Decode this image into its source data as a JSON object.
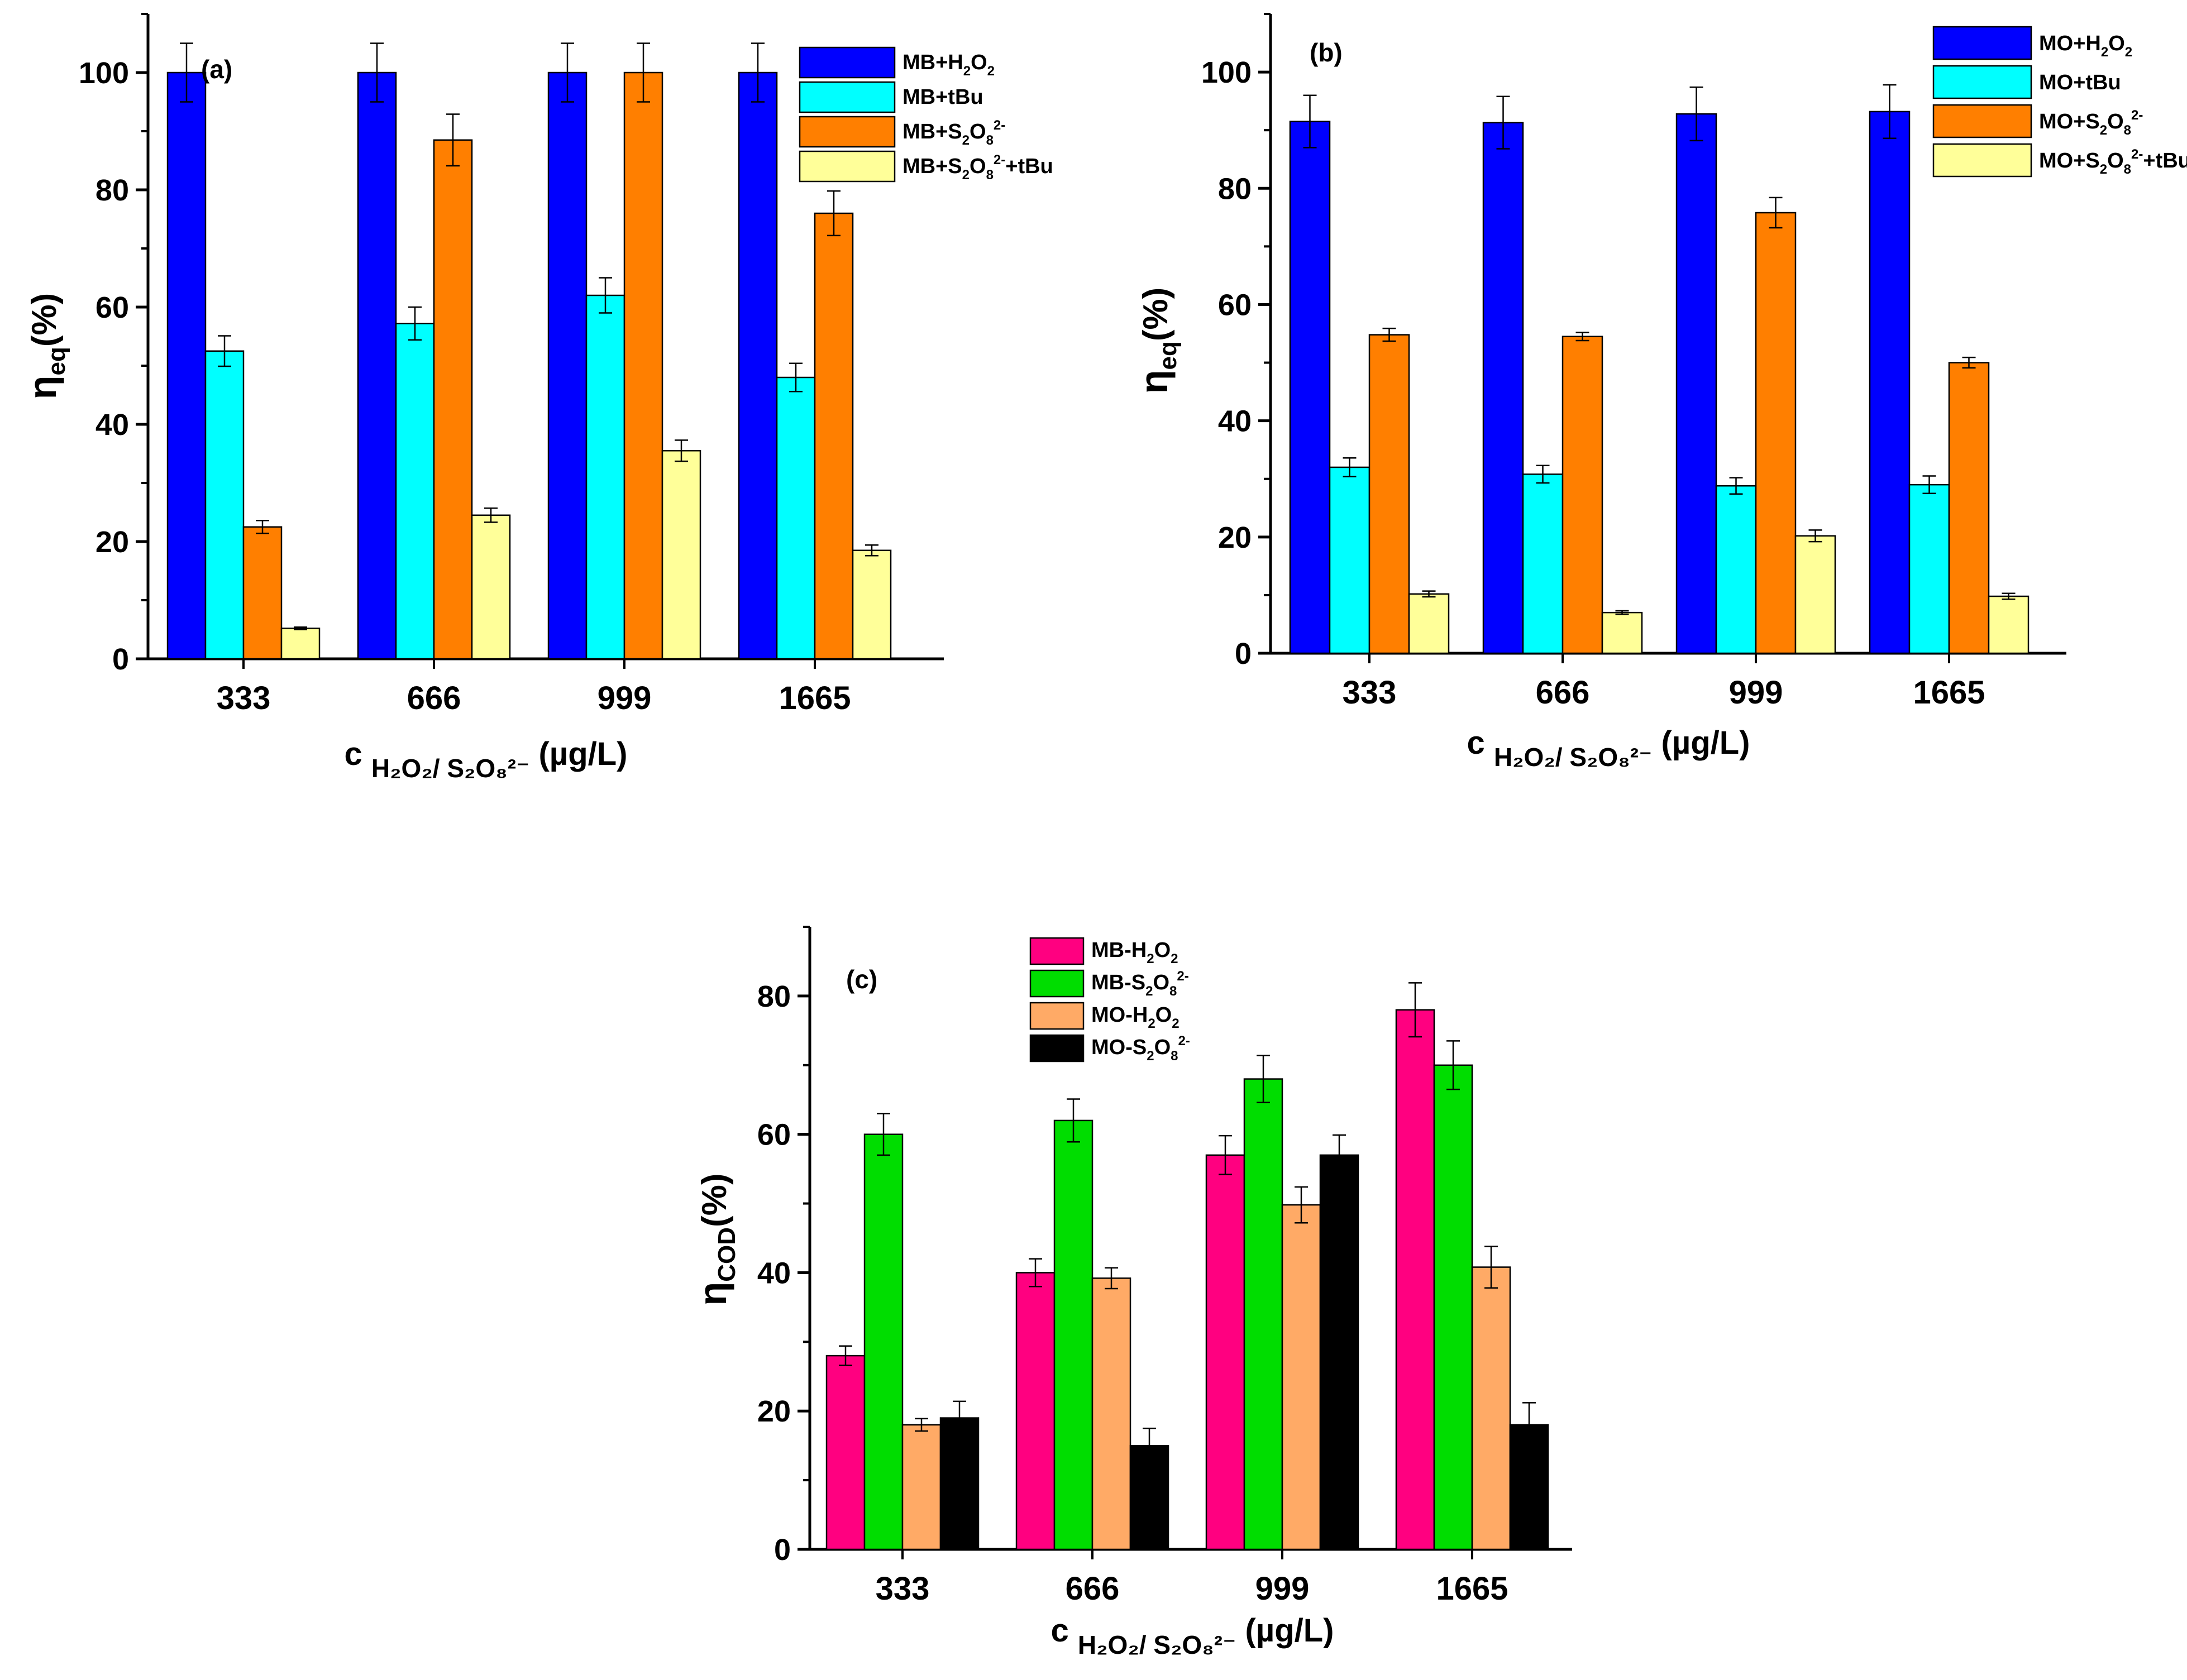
{
  "chart_data": [
    {
      "type": "bar",
      "panel_label": "(a)",
      "categories": [
        "333",
        "666",
        "999",
        "1665"
      ],
      "ylim": [
        0,
        110
      ],
      "y_ticks": [
        "0",
        "20",
        "40",
        "60",
        "80",
        "100"
      ],
      "ylabel": {
        "main": "η",
        "sub": "eq",
        "tail": "(%)"
      },
      "xlabel": {
        "lead": "c",
        "sub": "H₂O₂/ S₂O₈²⁻",
        "tail": "(µg/L)"
      },
      "legend_position": "top-right",
      "series": [
        {
          "name": "MB+H₂O₂",
          "label_main": "MB+H",
          "label_rest": [
            {
              "t": "2",
              "s": "sub"
            },
            {
              "t": "O",
              "s": "n"
            },
            {
              "t": "2",
              "s": "sub"
            }
          ],
          "color": "#0000FF",
          "values": [
            100,
            100,
            100,
            100
          ],
          "errors": [
            5,
            5,
            5,
            5
          ]
        },
        {
          "name": "MB+tBu",
          "label_main": "MB+tBu",
          "label_rest": [],
          "color": "#00FFFF",
          "values": [
            52.5,
            57.2,
            62,
            48
          ],
          "errors": [
            2.6,
            2.8,
            3,
            2.4
          ]
        },
        {
          "name": "MB+S₂O₈²⁻",
          "label_main": "MB+S",
          "label_rest": [
            {
              "t": "2",
              "s": "sub"
            },
            {
              "t": "O",
              "s": "n"
            },
            {
              "t": "8",
              "s": "sub"
            },
            {
              "t": "2-",
              "s": "sup"
            }
          ],
          "color": "#FF7F00",
          "values": [
            22.5,
            88.5,
            100,
            76
          ],
          "errors": [
            1.1,
            4.4,
            5,
            3.8
          ]
        },
        {
          "name": "MB+S₂O₈²⁻+tBu",
          "label_main": "MB+S",
          "label_rest": [
            {
              "t": "2",
              "s": "sub"
            },
            {
              "t": "O",
              "s": "n"
            },
            {
              "t": "8",
              "s": "sub"
            },
            {
              "t": "2-",
              "s": "sup"
            },
            {
              "t": "+tBu",
              "s": "n"
            }
          ],
          "color": "#FFFF99",
          "values": [
            5.2,
            24.5,
            35.5,
            18.5
          ],
          "errors": [
            0.2,
            1.2,
            1.8,
            0.9
          ]
        }
      ]
    },
    {
      "type": "bar",
      "panel_label": "(b)",
      "categories": [
        "333",
        "666",
        "999",
        "1665"
      ],
      "ylim": [
        0,
        110
      ],
      "y_ticks": [
        "0",
        "20",
        "40",
        "60",
        "80",
        "100"
      ],
      "ylabel": {
        "main": "η",
        "sub": "eq",
        "tail": "(%)"
      },
      "xlabel": {
        "lead": "c",
        "sub": "H₂O₂/ S₂O₈²⁻",
        "tail": "(µg/L)"
      },
      "legend_position": "top-right",
      "series": [
        {
          "name": "MO+H₂O₂",
          "label_main": "MO+H",
          "label_rest": [
            {
              "t": "2",
              "s": "sub"
            },
            {
              "t": "O",
              "s": "n"
            },
            {
              "t": "2",
              "s": "sub"
            }
          ],
          "color": "#0000FF",
          "values": [
            91.5,
            91.3,
            92.8,
            93.2
          ],
          "errors": [
            4.5,
            4.5,
            4.6,
            4.6
          ]
        },
        {
          "name": "MO+tBu",
          "label_main": "MO+tBu",
          "label_rest": [],
          "color": "#00FFFF",
          "values": [
            32,
            30.8,
            28.8,
            29
          ],
          "errors": [
            1.6,
            1.5,
            1.4,
            1.5
          ]
        },
        {
          "name": "MO+S₂O₈²⁻",
          "label_main": "MO+S",
          "label_rest": [
            {
              "t": "2",
              "s": "sub"
            },
            {
              "t": "O",
              "s": "n"
            },
            {
              "t": "8",
              "s": "sub"
            },
            {
              "t": "2-",
              "s": "sup"
            }
          ],
          "color": "#FF7F00",
          "values": [
            54.8,
            54.5,
            75.8,
            50
          ],
          "errors": [
            1.1,
            0.7,
            2.6,
            0.9
          ]
        },
        {
          "name": "MO+S₂O₈²⁻+tBu",
          "label_main": "MO+S",
          "label_rest": [
            {
              "t": "2",
              "s": "sub"
            },
            {
              "t": "O",
              "s": "n"
            },
            {
              "t": "8",
              "s": "sub"
            },
            {
              "t": "2-",
              "s": "sup"
            },
            {
              "t": "+tBu",
              "s": "n"
            }
          ],
          "color": "#FFFF99",
          "values": [
            10.2,
            7,
            20.2,
            9.8
          ],
          "errors": [
            0.5,
            0.3,
            1,
            0.5
          ]
        }
      ]
    },
    {
      "type": "bar",
      "panel_label": "(c)",
      "categories": [
        "333",
        "666",
        "999",
        "1665"
      ],
      "ylim": [
        0,
        90
      ],
      "y_ticks": [
        "0",
        "20",
        "40",
        "60",
        "80"
      ],
      "ylabel": {
        "main": "η",
        "sub": "COD",
        "tail": "(%)"
      },
      "xlabel": {
        "lead": "c",
        "sub": "H₂O₂/ S₂O₈²⁻",
        "tail": "(µg/L)"
      },
      "legend_position": "top-left",
      "series": [
        {
          "name": "MB-H₂O₂",
          "label_main": "MB-H",
          "label_rest": [
            {
              "t": "2",
              "s": "sub"
            },
            {
              "t": "O",
              "s": "n"
            },
            {
              "t": "2",
              "s": "sub"
            }
          ],
          "color": "#FF0080",
          "values": [
            28,
            40,
            57,
            78
          ],
          "errors": [
            1.4,
            2,
            2.8,
            3.9
          ]
        },
        {
          "name": "MB-S₂O₈²⁻",
          "label_main": "MB-S",
          "label_rest": [
            {
              "t": "2",
              "s": "sub"
            },
            {
              "t": "O",
              "s": "n"
            },
            {
              "t": "8",
              "s": "sub"
            },
            {
              "t": "2-",
              "s": "sup"
            }
          ],
          "color": "#00DD00",
          "values": [
            60,
            62,
            68,
            70
          ],
          "errors": [
            3,
            3.1,
            3.4,
            3.5
          ]
        },
        {
          "name": "MO-H₂O₂",
          "label_main": "MO-H",
          "label_rest": [
            {
              "t": "2",
              "s": "sub"
            },
            {
              "t": "O",
              "s": "n"
            },
            {
              "t": "2",
              "s": "sub"
            }
          ],
          "color": "#FFAA66",
          "values": [
            18,
            39.2,
            49.8,
            40.8
          ],
          "errors": [
            0.9,
            1.5,
            2.6,
            3
          ]
        },
        {
          "name": "MO-S₂O₈²⁻",
          "label_main": "MO-S",
          "label_rest": [
            {
              "t": "2",
              "s": "sub"
            },
            {
              "t": "O",
              "s": "n"
            },
            {
              "t": "8",
              "s": "sub"
            },
            {
              "t": "2-",
              "s": "sup"
            }
          ],
          "color": "#000000",
          "values": [
            19,
            15,
            57,
            18
          ],
          "errors": [
            2.4,
            2.5,
            2.9,
            3.2
          ]
        }
      ]
    }
  ]
}
